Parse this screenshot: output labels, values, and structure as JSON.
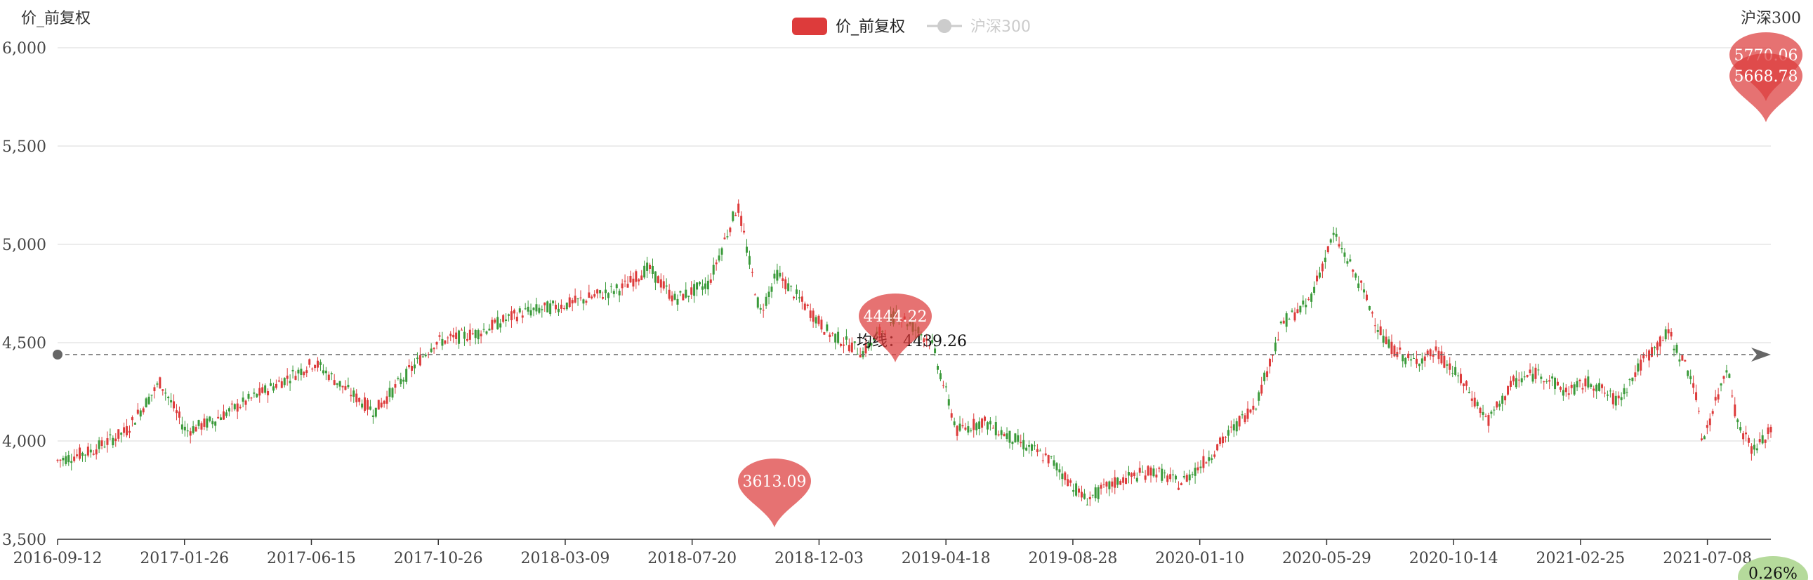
{
  "chart_data": {
    "type": "candlestick",
    "left_axis_title": "价_前复权",
    "right_axis_title": "沪深300",
    "legend": [
      {
        "name": "价_前复权",
        "color": "#dd3b3b",
        "active": true
      },
      {
        "name": "沪深300",
        "color": "#cccccc",
        "active": false
      }
    ],
    "ylim": [
      3500,
      6000
    ],
    "y_ticks": [
      "3,500",
      "4,000",
      "4,500",
      "5,000",
      "5,500",
      "6,000"
    ],
    "y_tick_values": [
      3500,
      4000,
      4500,
      5000,
      5500,
      6000
    ],
    "x_ticks": [
      "2016-09-12",
      "2017-01-26",
      "2017-06-15",
      "2017-10-26",
      "2018-03-09",
      "2018-07-20",
      "2018-12-03",
      "2019-04-18",
      "2019-08-28",
      "2020-01-10",
      "2020-05-29",
      "2020-10-14",
      "2021-02-25",
      "2021-07-08"
    ],
    "trend": [
      {
        "x": 0,
        "y": 3900
      },
      {
        "x": 0.02,
        "y": 3950
      },
      {
        "x": 0.04,
        "y": 4050
      },
      {
        "x": 0.06,
        "y": 4300
      },
      {
        "x": 0.075,
        "y": 4050
      },
      {
        "x": 0.09,
        "y": 4100
      },
      {
        "x": 0.11,
        "y": 4200
      },
      {
        "x": 0.13,
        "y": 4300
      },
      {
        "x": 0.15,
        "y": 4400
      },
      {
        "x": 0.17,
        "y": 4250
      },
      {
        "x": 0.185,
        "y": 4150
      },
      {
        "x": 0.2,
        "y": 4300
      },
      {
        "x": 0.22,
        "y": 4500
      },
      {
        "x": 0.245,
        "y": 4550
      },
      {
        "x": 0.27,
        "y": 4650
      },
      {
        "x": 0.3,
        "y": 4700
      },
      {
        "x": 0.33,
        "y": 4780
      },
      {
        "x": 0.345,
        "y": 4880
      },
      {
        "x": 0.36,
        "y": 4720
      },
      {
        "x": 0.38,
        "y": 4800
      },
      {
        "x": 0.397,
        "y": 5200
      },
      {
        "x": 0.41,
        "y": 4650
      },
      {
        "x": 0.42,
        "y": 4850
      },
      {
        "x": 0.435,
        "y": 4700
      },
      {
        "x": 0.45,
        "y": 4550
      },
      {
        "x": 0.47,
        "y": 4450
      },
      {
        "x": 0.49,
        "y": 4650
      },
      {
        "x": 0.51,
        "y": 4500
      },
      {
        "x": 0.525,
        "y": 4050
      },
      {
        "x": 0.54,
        "y": 4100
      },
      {
        "x": 0.56,
        "y": 4000
      },
      {
        "x": 0.58,
        "y": 3900
      },
      {
        "x": 0.6,
        "y": 3700
      },
      {
        "x": 0.62,
        "y": 3800
      },
      {
        "x": 0.64,
        "y": 3850
      },
      {
        "x": 0.655,
        "y": 3780
      },
      {
        "x": 0.67,
        "y": 3900
      },
      {
        "x": 0.685,
        "y": 4050
      },
      {
        "x": 0.7,
        "y": 4200
      },
      {
        "x": 0.715,
        "y": 4600
      },
      {
        "x": 0.73,
        "y": 4700
      },
      {
        "x": 0.745,
        "y": 5050
      },
      {
        "x": 0.76,
        "y": 4800
      },
      {
        "x": 0.775,
        "y": 4500
      },
      {
        "x": 0.79,
        "y": 4400
      },
      {
        "x": 0.805,
        "y": 4450
      },
      {
        "x": 0.82,
        "y": 4300
      },
      {
        "x": 0.835,
        "y": 4100
      },
      {
        "x": 0.85,
        "y": 4300
      },
      {
        "x": 0.865,
        "y": 4350
      },
      {
        "x": 0.88,
        "y": 4250
      },
      {
        "x": 0.895,
        "y": 4300
      },
      {
        "x": 0.91,
        "y": 4200
      },
      {
        "x": 0.925,
        "y": 4400
      },
      {
        "x": 0.94,
        "y": 4550
      },
      {
        "x": 0.955,
        "y": 4300
      },
      {
        "x": 0.96,
        "y": 4000
      },
      {
        "x": 0.97,
        "y": 4250
      },
      {
        "x": 0.975,
        "y": 4400
      },
      {
        "x": 0.98,
        "y": 4100
      },
      {
        "x": 0.99,
        "y": 3950
      },
      {
        "x": 1.0,
        "y": 4050
      }
    ],
    "average_line": {
      "label": "均线：4439.26",
      "value": 4439.26
    },
    "pins": [
      {
        "label": "5770.06",
        "value": 5770.06,
        "position": "end"
      },
      {
        "label": "5668.78",
        "value": 5668.78,
        "position": "end"
      },
      {
        "label": "4444.22",
        "value": 4444.22,
        "position": "2019-02"
      },
      {
        "label": "3613.09",
        "value": 3613.09,
        "position": "2018-10",
        "inverted": true
      }
    ],
    "corner_badge": "0.26%"
  }
}
